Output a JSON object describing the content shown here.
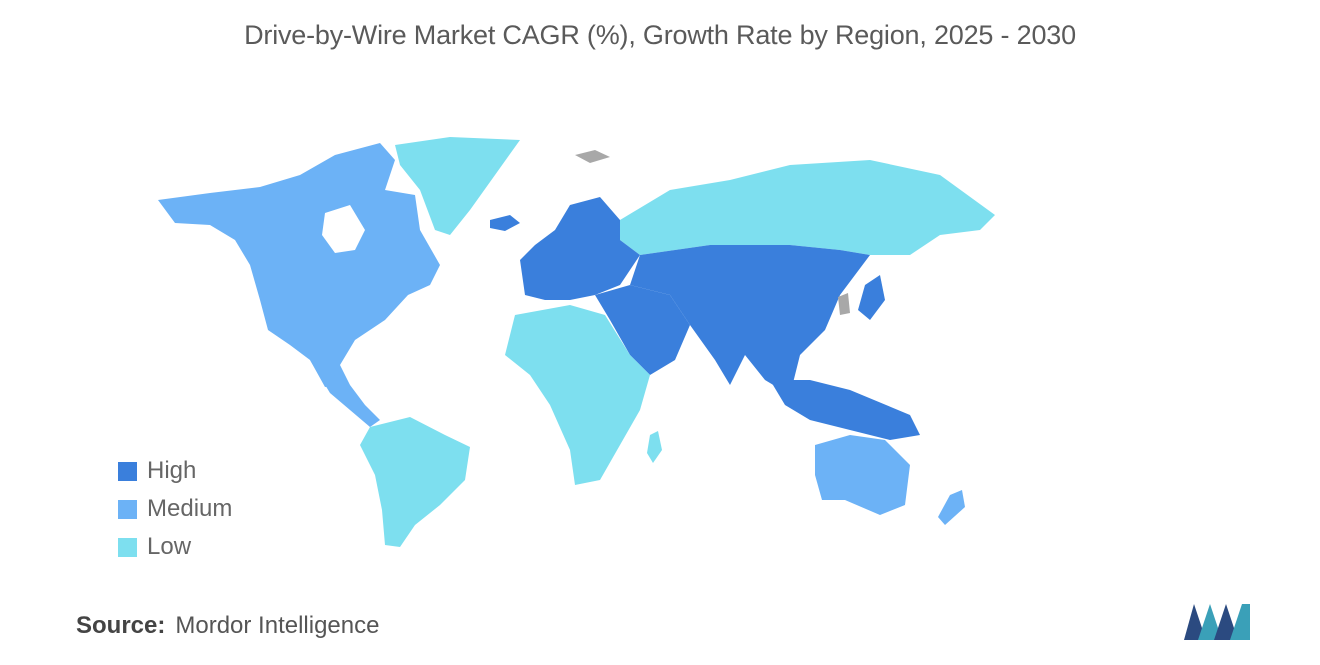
{
  "title": "Drive-by-Wire Market CAGR (%), Growth Rate by Region, 2025 - 2030",
  "legend": [
    {
      "label": "High",
      "color": "#3a7fdc"
    },
    {
      "label": "Medium",
      "color": "#6cb2f6"
    },
    {
      "label": "Low",
      "color": "#7ddfef"
    }
  ],
  "regions": [
    {
      "region": "North America",
      "level": "Medium"
    },
    {
      "region": "Greenland",
      "level": "Low"
    },
    {
      "region": "South America",
      "level": "Low"
    },
    {
      "region": "Europe",
      "level": "High"
    },
    {
      "region": "Russia",
      "level": "Low"
    },
    {
      "region": "Middle East",
      "level": "High"
    },
    {
      "region": "Africa",
      "level": "Low"
    },
    {
      "region": "Asia",
      "level": "High"
    },
    {
      "region": "Southeast Asia",
      "level": "High"
    },
    {
      "region": "Australia",
      "level": "Medium"
    },
    {
      "region": "New Zealand",
      "level": "Medium"
    }
  ],
  "source": {
    "label": "Source:",
    "value": "Mordor Intelligence"
  },
  "colors": {
    "no_data": "#a8a8a8",
    "title_text": "#5a5a5a"
  }
}
